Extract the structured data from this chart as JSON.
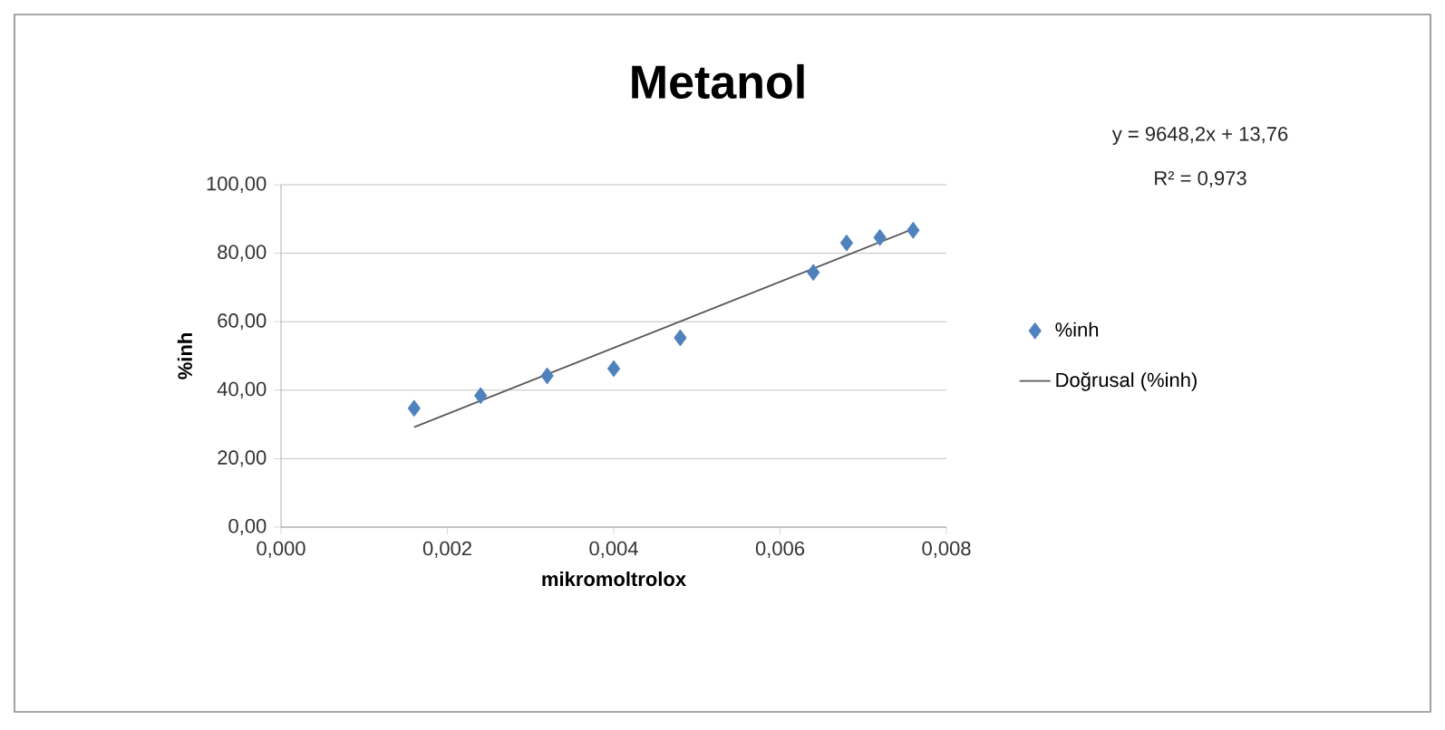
{
  "chart_data": {
    "type": "scatter",
    "title": "Metanol",
    "xlabel": "mikromoltrolox",
    "ylabel": "%inh",
    "annotations": [
      "y = 9648,2x + 13,76",
      "R² = 0,973"
    ],
    "xlim": [
      0,
      0.008
    ],
    "ylim": [
      0,
      100
    ],
    "xticks": [
      {
        "value": 0,
        "label": "0,000"
      },
      {
        "value": 0.002,
        "label": "0,002"
      },
      {
        "value": 0.004,
        "label": "0,004"
      },
      {
        "value": 0.006,
        "label": "0,006"
      },
      {
        "value": 0.008,
        "label": "0,008"
      }
    ],
    "yticks": [
      {
        "value": 0,
        "label": "0,00"
      },
      {
        "value": 20,
        "label": "20,00"
      },
      {
        "value": 40,
        "label": "40,00"
      },
      {
        "value": 60,
        "label": "60,00"
      },
      {
        "value": 80,
        "label": "80,00"
      },
      {
        "value": 100,
        "label": "100,00"
      }
    ],
    "grid": "y",
    "legend": "right",
    "marker": "diamond",
    "series": [
      {
        "name": "%inh",
        "color": "#4f81bd",
        "x": [
          0.0016,
          0.0024,
          0.0032,
          0.004,
          0.0048,
          0.0064,
          0.0068,
          0.0072,
          0.0076
        ],
        "values": [
          34.7,
          38.4,
          44.2,
          46.3,
          55.3,
          74.4,
          83.0,
          84.6,
          86.7
        ]
      },
      {
        "name": "Doğrusal (%inh)",
        "type": "line",
        "marker": "none",
        "color": "#595959",
        "x": [
          0.0016,
          0.0076
        ],
        "values": [
          29.2,
          87.1
        ]
      }
    ]
  }
}
